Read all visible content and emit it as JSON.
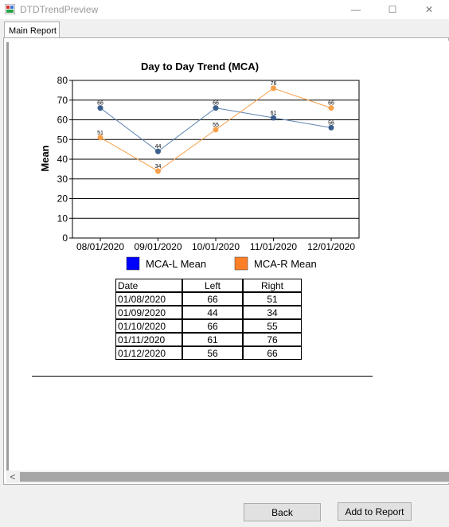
{
  "window": {
    "title": "DTDTrendPreview",
    "controls": {
      "minimize": "—",
      "maximize": "☐",
      "close": "✕"
    }
  },
  "tabs": [
    {
      "label": "Main Report"
    }
  ],
  "chart_data": {
    "type": "line",
    "title": "Day to Day Trend (MCA)",
    "ylabel": "Mean",
    "xlabel": "",
    "categories": [
      "08/01/2020",
      "09/01/2020",
      "10/01/2020",
      "11/01/2020",
      "12/01/2020"
    ],
    "ylim": [
      0,
      80
    ],
    "yticks": [
      0,
      10,
      20,
      30,
      40,
      50,
      60,
      70,
      80
    ],
    "grid": true,
    "legend_position": "bottom",
    "series": [
      {
        "name": "MCA-L Mean",
        "values": [
          66,
          44,
          66,
          61,
          56
        ],
        "line_color": "#5b82b0",
        "marker_color": "#3b5f8c",
        "legend_color": "#0000ff"
      },
      {
        "name": "MCA-R Mean",
        "values": [
          51,
          34,
          55,
          76,
          66
        ],
        "line_color": "#f7a04b",
        "marker_color": "#f7a04b",
        "legend_color": "#ff7f27"
      }
    ]
  },
  "table": {
    "headers": [
      "Date",
      "Left",
      "Right"
    ],
    "rows": [
      [
        "01/08/2020",
        "66",
        "51"
      ],
      [
        "01/09/2020",
        "44",
        "34"
      ],
      [
        "01/10/2020",
        "66",
        "55"
      ],
      [
        "01/11/2020",
        "61",
        "76"
      ],
      [
        "01/12/2020",
        "56",
        "66"
      ]
    ]
  },
  "scrollbar": {
    "left_arrow": "<"
  },
  "buttons": {
    "back": "Back",
    "add_to_report": "Add to Report"
  }
}
